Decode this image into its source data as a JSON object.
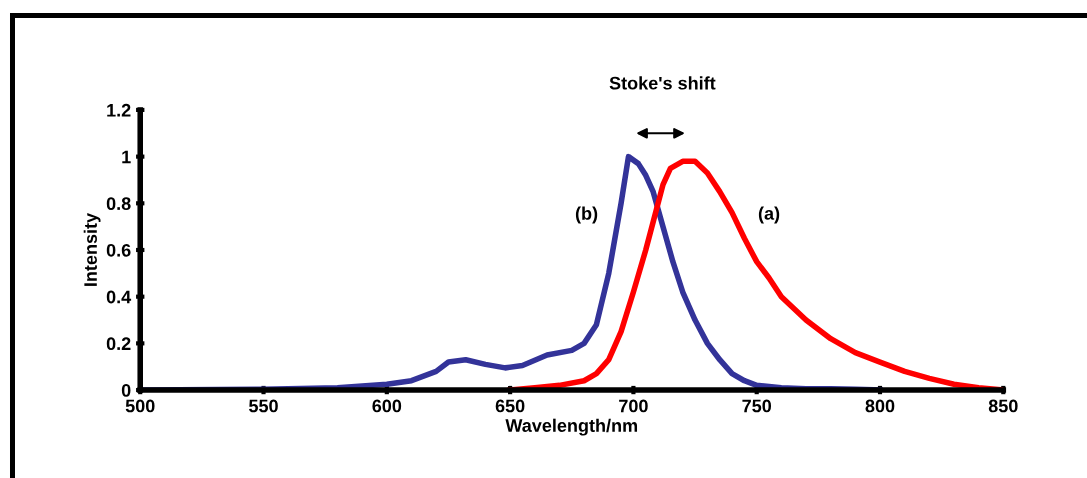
{
  "chart_data": {
    "type": "line",
    "xlabel": "Wavelength/nm",
    "ylabel": "Intensity",
    "xlim": [
      500,
      850
    ],
    "xticks": [
      500,
      550,
      600,
      650,
      700,
      750,
      800,
      850
    ],
    "ylim": [
      0,
      1.2
    ],
    "yticks": [
      0,
      0.2,
      0.4,
      0.6,
      0.8,
      1,
      1.2
    ],
    "grid": false,
    "legend": false,
    "marker": "none",
    "line_style": "solid",
    "annotations": [
      "Stoke's shift"
    ],
    "series": [
      {
        "name": "(b)",
        "color": "#333399",
        "x": [
          500,
          550,
          580,
          600,
          610,
          620,
          625,
          632,
          640,
          648,
          655,
          665,
          675,
          680,
          685,
          690,
          695,
          698,
          702,
          705,
          708,
          712,
          716,
          720,
          725,
          730,
          735,
          740,
          745,
          750,
          760,
          770,
          780,
          790,
          800
        ],
        "values": [
          0,
          0.003,
          0.01,
          0.025,
          0.04,
          0.08,
          0.12,
          0.13,
          0.11,
          0.095,
          0.105,
          0.15,
          0.17,
          0.2,
          0.28,
          0.5,
          0.8,
          1.0,
          0.97,
          0.92,
          0.85,
          0.7,
          0.55,
          0.42,
          0.3,
          0.2,
          0.13,
          0.07,
          0.04,
          0.02,
          0.01,
          0.005,
          0.005,
          0.003,
          0
        ]
      },
      {
        "name": "(a)",
        "color": "#ff0000",
        "x": [
          650,
          660,
          670,
          680,
          685,
          690,
          695,
          700,
          705,
          708,
          712,
          715,
          720,
          725,
          730,
          735,
          740,
          745,
          750,
          755,
          760,
          770,
          780,
          790,
          800,
          810,
          820,
          830,
          840,
          850
        ],
        "values": [
          0,
          0.01,
          0.02,
          0.04,
          0.07,
          0.13,
          0.25,
          0.42,
          0.6,
          0.72,
          0.88,
          0.95,
          0.98,
          0.98,
          0.93,
          0.85,
          0.76,
          0.65,
          0.55,
          0.48,
          0.4,
          0.3,
          0.22,
          0.16,
          0.12,
          0.08,
          0.05,
          0.025,
          0.01,
          0
        ]
      }
    ]
  }
}
